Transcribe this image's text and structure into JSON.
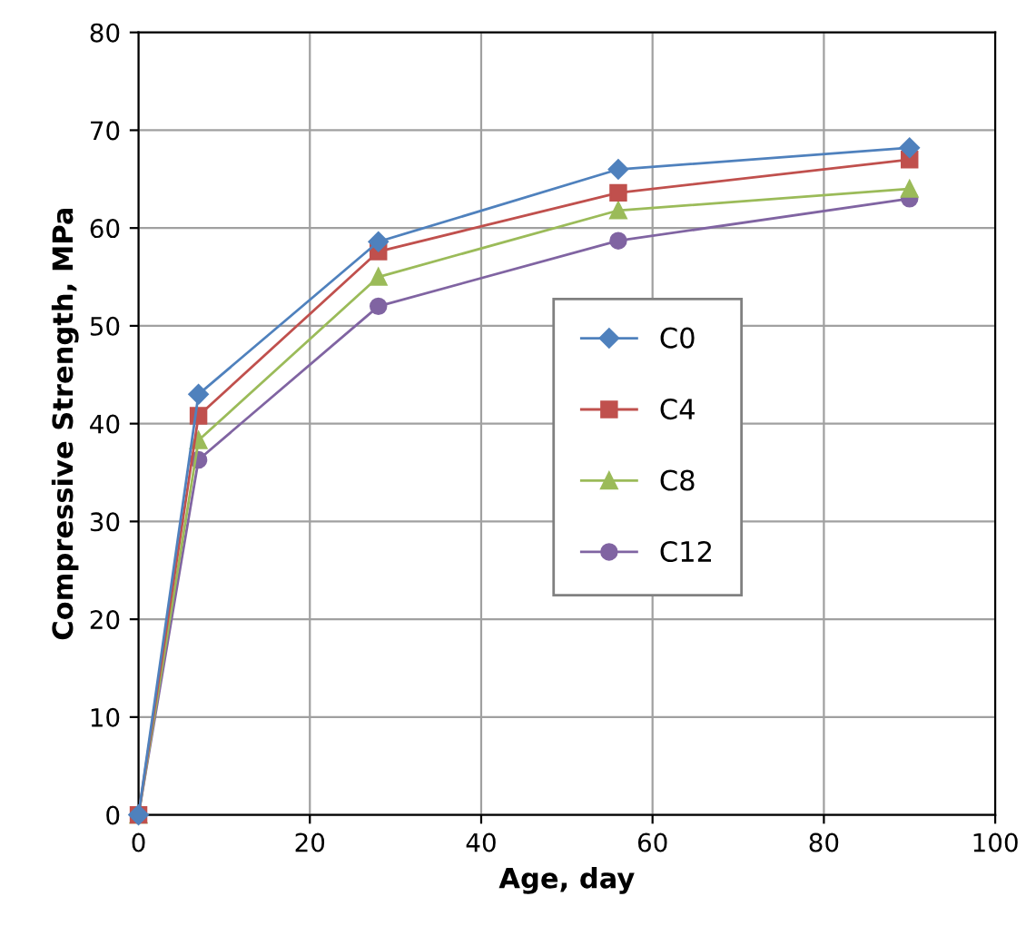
{
  "chart_data": {
    "type": "line",
    "xlabel": "Age, day",
    "ylabel": "Compressive Strength, MPa",
    "xlim": [
      0,
      100
    ],
    "xticks": [
      0,
      20,
      40,
      60,
      80,
      100
    ],
    "ylim": [
      0,
      80
    ],
    "yticks": [
      0,
      10,
      20,
      30,
      40,
      50,
      60,
      70,
      80
    ],
    "grid": true,
    "legend": "right",
    "line_style": "solid",
    "series": [
      {
        "name": "C0",
        "color": "#4f81bd",
        "marker": "diamond",
        "x": [
          0,
          7,
          28,
          56,
          90
        ],
        "values": [
          0,
          43,
          58.6,
          66,
          68.2
        ]
      },
      {
        "name": "C4",
        "color": "#c0504d",
        "marker": "square",
        "x": [
          0,
          7,
          28,
          56,
          90
        ],
        "values": [
          0,
          40.8,
          57.6,
          63.6,
          67
        ]
      },
      {
        "name": "C8",
        "color": "#9bbb59",
        "marker": "triangle",
        "x": [
          0,
          7,
          28,
          56,
          90
        ],
        "values": [
          0,
          38.3,
          55,
          61.8,
          64
        ]
      },
      {
        "name": "C12",
        "color": "#8064a2",
        "marker": "circle",
        "x": [
          0,
          7,
          28,
          56,
          90
        ],
        "values": [
          0,
          36.3,
          52,
          58.7,
          63
        ]
      }
    ]
  }
}
